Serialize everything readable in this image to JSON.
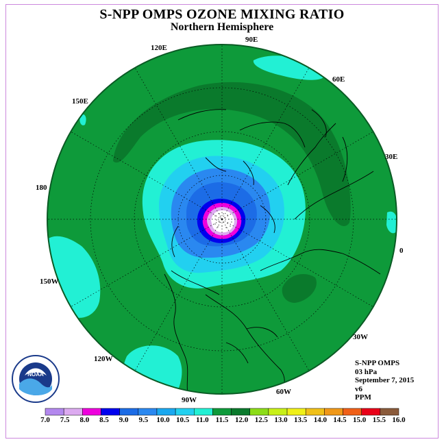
{
  "title": "S-NPP OMPS OZONE MIXING RATIO",
  "subtitle": "Northern Hemisphere",
  "longitude_labels": [
    {
      "text": "90E"
    },
    {
      "text": "60E"
    },
    {
      "text": "120E"
    },
    {
      "text": "150E"
    },
    {
      "text": "30E"
    },
    {
      "text": "180"
    },
    {
      "text": "0"
    },
    {
      "text": "150W"
    },
    {
      "text": "30W"
    },
    {
      "text": "120W"
    },
    {
      "text": "60W"
    },
    {
      "text": "90W"
    }
  ],
  "info": {
    "instrument": "S-NPP OMPS",
    "level": "03 hPa",
    "date": "September 7, 2015",
    "version": "v6",
    "units": "PPM"
  },
  "logo": {
    "center_text": "NOAA",
    "ring_text": "NATIONAL OCEANIC AND ATMOSPHERIC ADMINISTRATION · U.S. DEPARTMENT OF COMMERCE"
  },
  "colorbar": {
    "labels": [
      "7.0",
      "7.5",
      "8.0",
      "8.5",
      "9.0",
      "9.5",
      "10.0",
      "10.5",
      "11.0",
      "11.5",
      "12.0",
      "12.5",
      "13.0",
      "13.5",
      "14.0",
      "14.5",
      "15.0",
      "15.5",
      "16.0"
    ],
    "colors": [
      "#b388ee",
      "#dcaaf0",
      "#ee00dd",
      "#0000ee",
      "#1c6ce6",
      "#2a88f0",
      "#1aa8f0",
      "#22d0f0",
      "#22f0d4",
      "#0e9a3a",
      "#0a7a2c",
      "#8cdc18",
      "#c8f018",
      "#f0f018",
      "#f0c018",
      "#f09818",
      "#f06018",
      "#e80018",
      "#8a5a3a"
    ]
  },
  "map": {
    "ocean_color": "#0e9a3a",
    "colors": {
      "dark_green": "#0a7a2c",
      "cyan": "#22f0d4",
      "light_blue": "#22d0f0",
      "mid_blue": "#2a88f0",
      "blue": "#1c6ce6",
      "dark_blue": "#0000ee",
      "magenta": "#ee00dd",
      "lilac": "#dcaaf0"
    }
  }
}
